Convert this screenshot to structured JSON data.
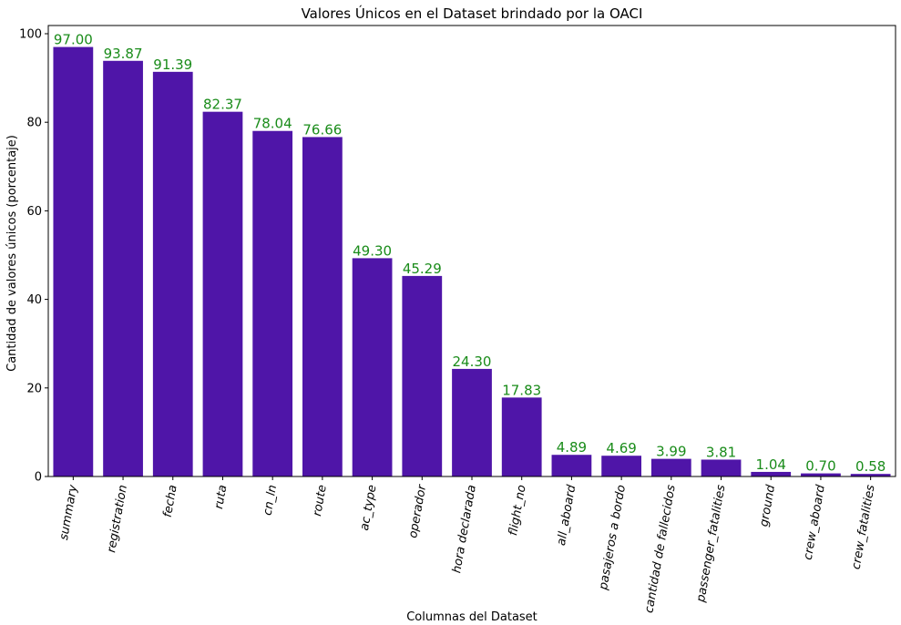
{
  "chart_data": {
    "type": "bar",
    "title": "Valores Únicos en el Dataset brindado por la OACI",
    "xlabel": "Columnas del Dataset",
    "ylabel": "Cantidad de valores únicos (porcentaje)",
    "categories": [
      "summary",
      "registration",
      "fecha",
      "ruta",
      "cn_ln",
      "route",
      "ac_type",
      "operador",
      "hora declarada",
      "flight_no",
      "all_aboard",
      "pasajeros a bordo",
      "cantidad de fallecidos",
      "passenger_fatalities",
      "ground",
      "crew_aboard",
      "crew_fatalities"
    ],
    "values": [
      97.0,
      93.87,
      91.39,
      82.37,
      78.04,
      76.66,
      49.3,
      45.29,
      24.3,
      17.83,
      4.89,
      4.69,
      3.99,
      3.81,
      1.04,
      0.7,
      0.58
    ],
    "value_labels": [
      "97.00",
      "93.87",
      "91.39",
      "82.37",
      "78.04",
      "76.66",
      "49.30",
      "45.29",
      "24.30",
      "17.83",
      "4.89",
      "4.69",
      "3.99",
      "3.81",
      "1.04",
      "0.70",
      "0.58"
    ],
    "yticks": [
      0,
      20,
      40,
      60,
      80,
      100
    ],
    "ylim": [
      0,
      101.85
    ],
    "grid": false,
    "bar_color": "#4f15a8",
    "label_color": "#1a8c1a"
  }
}
